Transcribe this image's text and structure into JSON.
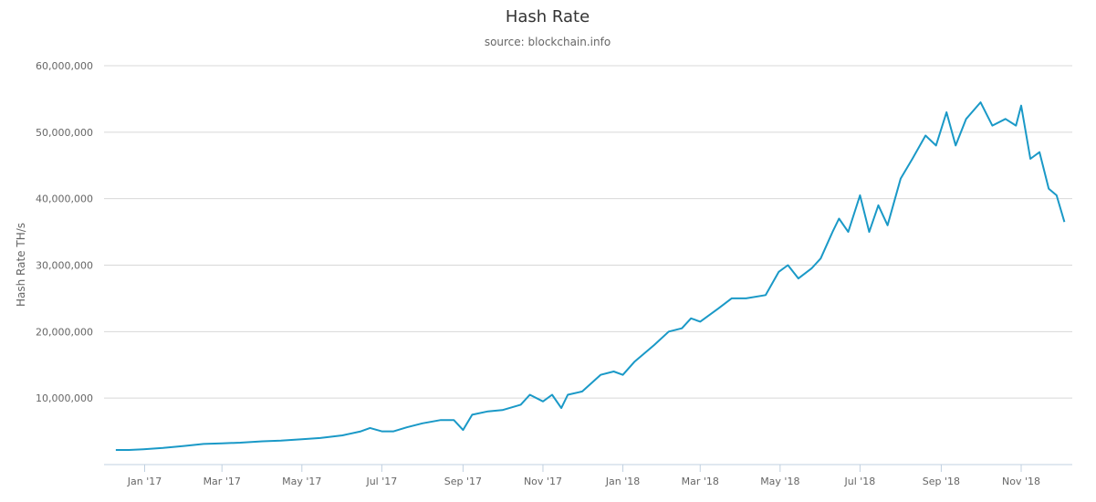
{
  "chart_data": {
    "type": "line",
    "title": "Hash Rate",
    "subtitle": "source: blockchain.info",
    "xlabel": "",
    "ylabel": "Hash Rate TH/s",
    "ylim": [
      0,
      60000000
    ],
    "xlim": [
      "2016-12-01",
      "2018-12-10"
    ],
    "grid": true,
    "legend": "none",
    "color": "#1a99c7",
    "y_ticks": [
      {
        "value": 10000000,
        "label": "10,000,000"
      },
      {
        "value": 20000000,
        "label": "20,000,000"
      },
      {
        "value": 30000000,
        "label": "30,000,000"
      },
      {
        "value": 40000000,
        "label": "40,000,000"
      },
      {
        "value": 50000000,
        "label": "50,000,000"
      },
      {
        "value": 60000000,
        "label": "60,000,000"
      }
    ],
    "x_ticks": [
      {
        "date": "2017-01-01",
        "label": "Jan '17"
      },
      {
        "date": "2017-03-01",
        "label": "Mar '17"
      },
      {
        "date": "2017-05-01",
        "label": "May '17"
      },
      {
        "date": "2017-07-01",
        "label": "Jul '17"
      },
      {
        "date": "2017-09-01",
        "label": "Sep '17"
      },
      {
        "date": "2017-11-01",
        "label": "Nov '17"
      },
      {
        "date": "2018-01-01",
        "label": "Jan '18"
      },
      {
        "date": "2018-03-01",
        "label": "Mar '18"
      },
      {
        "date": "2018-05-01",
        "label": "May '18"
      },
      {
        "date": "2018-07-01",
        "label": "Jul '18"
      },
      {
        "date": "2018-09-01",
        "label": "Sep '18"
      },
      {
        "date": "2018-11-01",
        "label": "Nov '18"
      }
    ],
    "series": [
      {
        "points": [
          [
            "2016-12-10",
            2200000
          ],
          [
            "2016-12-20",
            2200000
          ],
          [
            "2016-12-31",
            2300000
          ],
          [
            "2017-01-15",
            2500000
          ],
          [
            "2017-01-31",
            2800000
          ],
          [
            "2017-02-15",
            3100000
          ],
          [
            "2017-03-01",
            3200000
          ],
          [
            "2017-03-15",
            3300000
          ],
          [
            "2017-04-01",
            3500000
          ],
          [
            "2017-04-15",
            3600000
          ],
          [
            "2017-05-01",
            3800000
          ],
          [
            "2017-05-15",
            4000000
          ],
          [
            "2017-06-01",
            4400000
          ],
          [
            "2017-06-15",
            5000000
          ],
          [
            "2017-06-22",
            5500000
          ],
          [
            "2017-07-01",
            5000000
          ],
          [
            "2017-07-10",
            5000000
          ],
          [
            "2017-07-20",
            5600000
          ],
          [
            "2017-08-01",
            6200000
          ],
          [
            "2017-08-15",
            6700000
          ],
          [
            "2017-08-25",
            6700000
          ],
          [
            "2017-09-01",
            5200000
          ],
          [
            "2017-09-08",
            7500000
          ],
          [
            "2017-09-20",
            8000000
          ],
          [
            "2017-10-01",
            8200000
          ],
          [
            "2017-10-15",
            9000000
          ],
          [
            "2017-10-22",
            10500000
          ],
          [
            "2017-11-01",
            9500000
          ],
          [
            "2017-11-08",
            10500000
          ],
          [
            "2017-11-15",
            8500000
          ],
          [
            "2017-11-20",
            10500000
          ],
          [
            "2017-12-01",
            11000000
          ],
          [
            "2017-12-15",
            13500000
          ],
          [
            "2017-12-25",
            14000000
          ],
          [
            "2018-01-01",
            13500000
          ],
          [
            "2018-01-10",
            15500000
          ],
          [
            "2018-01-25",
            18000000
          ],
          [
            "2018-02-05",
            20000000
          ],
          [
            "2018-02-15",
            20500000
          ],
          [
            "2018-02-22",
            22000000
          ],
          [
            "2018-03-01",
            21500000
          ],
          [
            "2018-03-15",
            23500000
          ],
          [
            "2018-03-25",
            25000000
          ],
          [
            "2018-04-05",
            25000000
          ],
          [
            "2018-04-20",
            25500000
          ],
          [
            "2018-04-30",
            29000000
          ],
          [
            "2018-05-07",
            30000000
          ],
          [
            "2018-05-15",
            28000000
          ],
          [
            "2018-05-25",
            29500000
          ],
          [
            "2018-06-01",
            31000000
          ],
          [
            "2018-06-10",
            35000000
          ],
          [
            "2018-06-15",
            37000000
          ],
          [
            "2018-06-22",
            35000000
          ],
          [
            "2018-07-01",
            40500000
          ],
          [
            "2018-07-08",
            35000000
          ],
          [
            "2018-07-15",
            39000000
          ],
          [
            "2018-07-22",
            36000000
          ],
          [
            "2018-08-01",
            43000000
          ],
          [
            "2018-08-10",
            46000000
          ],
          [
            "2018-08-20",
            49500000
          ],
          [
            "2018-08-28",
            48000000
          ],
          [
            "2018-09-05",
            53000000
          ],
          [
            "2018-09-12",
            48000000
          ],
          [
            "2018-09-20",
            52000000
          ],
          [
            "2018-10-01",
            54500000
          ],
          [
            "2018-10-10",
            51000000
          ],
          [
            "2018-10-20",
            52000000
          ],
          [
            "2018-10-28",
            51000000
          ],
          [
            "2018-11-01",
            54000000
          ],
          [
            "2018-11-08",
            46000000
          ],
          [
            "2018-11-15",
            47000000
          ],
          [
            "2018-11-22",
            41500000
          ],
          [
            "2018-11-28",
            40500000
          ],
          [
            "2018-12-04",
            36500000
          ]
        ]
      }
    ]
  }
}
